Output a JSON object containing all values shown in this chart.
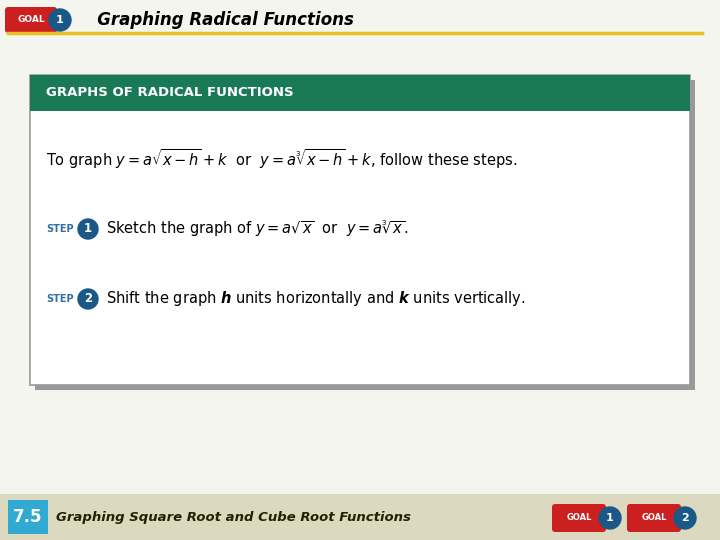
{
  "bg_color": "#f5f5f0",
  "header_title": "Graphing Radical Functions",
  "header_line_color": "#e8c020",
  "box_header_color": "#1a7a58",
  "box_header_text": "GRAPHS OF RADICAL FUNCTIONS",
  "box_border_color": "#999999",
  "box_bg": "#ffffff",
  "step_color": "#3070a8",
  "circle_color": "#1a5888",
  "goal_red": "#cc2020",
  "footer_bg": "#ddd8c0",
  "footer_number": "7.5",
  "footer_number_bg": "#30aad0",
  "footer_text": "Graphing Square Root and Cube Root Functions",
  "shadow_color": "#999999"
}
